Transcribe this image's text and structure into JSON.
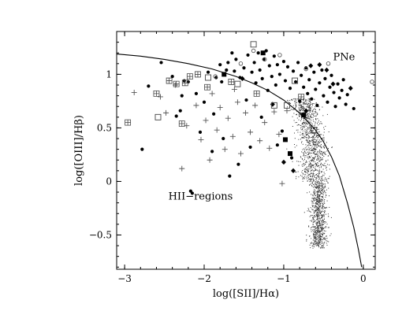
{
  "chart_data": {
    "type": "scatter",
    "title": "",
    "xlabel": "log([SII]/Hα)",
    "ylabel": "log([OIII]/Hβ)",
    "xlim": [
      -3.1,
      0.15
    ],
    "ylim": [
      -0.82,
      1.4
    ],
    "xticks": [
      "−3",
      "−2",
      "−1",
      "0"
    ],
    "xtick_values": [
      -3,
      -2,
      -1,
      0
    ],
    "yticks": [
      "−0.5",
      "0",
      "0.5",
      "1"
    ],
    "ytick_values": [
      -0.5,
      0,
      0.5,
      1
    ],
    "grid": false,
    "annotations": [
      {
        "text": "PNe",
        "x": -0.38,
        "y": 1.13
      },
      {
        "text": "HII−regions",
        "x": -2.45,
        "y": -0.17
      }
    ],
    "demarcation_curve": {
      "x": [
        -3.1,
        -2.8,
        -2.5,
        -2.2,
        -1.9,
        -1.6,
        -1.4,
        -1.2,
        -1.0,
        -0.8,
        -0.6,
        -0.5,
        -0.4,
        -0.3,
        -0.2,
        -0.12,
        -0.06,
        -0.02
      ],
      "y": [
        1.19,
        1.17,
        1.14,
        1.1,
        1.05,
        0.98,
        0.92,
        0.85,
        0.76,
        0.64,
        0.48,
        0.37,
        0.23,
        0.05,
        -0.2,
        -0.43,
        -0.64,
        -0.8
      ]
    },
    "series": [
      {
        "values": [
          [
            -2.78,
            0.3
          ],
          [
            -2.7,
            0.89
          ],
          [
            -2.54,
            1.11
          ],
          [
            -2.4,
            0.98
          ],
          [
            -2.35,
            0.61
          ],
          [
            -2.3,
            0.66
          ],
          [
            -2.28,
            0.8
          ],
          [
            -2.25,
            0.94
          ],
          [
            -2.2,
            0.93
          ],
          [
            -2.17,
            -0.09
          ],
          [
            -2.15,
            -0.11
          ],
          [
            -2.1,
            0.82
          ],
          [
            -2.05,
            0.46
          ],
          [
            -1.95,
            1.02
          ],
          [
            -1.9,
            0.28
          ],
          [
            -1.85,
            0.97
          ],
          [
            -1.8,
            1.09
          ],
          [
            -1.78,
            0.93
          ],
          [
            -1.72,
            1.04
          ],
          [
            -1.7,
            1.11
          ],
          [
            -1.65,
            1.2
          ],
          [
            -1.62,
            1.03
          ],
          [
            -1.6,
            1.14
          ],
          [
            -1.57,
            0.16
          ],
          [
            -1.55,
            0.97
          ],
          [
            -1.5,
            1.06
          ],
          [
            -1.47,
            0.76
          ],
          [
            -1.45,
            1.18
          ],
          [
            -1.42,
            0.32
          ],
          [
            -1.4,
            1.02
          ],
          [
            -1.37,
            1.11
          ],
          [
            -1.35,
            0.92
          ],
          [
            -1.32,
            1.2
          ],
          [
            -1.3,
            1.04
          ],
          [
            -1.27,
            0.96
          ],
          [
            -1.25,
            1.14
          ],
          [
            -1.22,
            1.22
          ],
          [
            -1.2,
            0.85
          ],
          [
            -1.18,
            1.08
          ],
          [
            -1.15,
            0.98
          ],
          [
            -1.12,
            1.17
          ],
          [
            -1.1,
            0.9
          ],
          [
            -1.08,
            1.09
          ],
          [
            -1.05,
            1.0
          ],
          [
            -1.02,
            0.47
          ],
          [
            -1.0,
            1.12
          ],
          [
            -0.98,
            0.94
          ],
          [
            -0.95,
            1.07
          ],
          [
            -0.92,
            0.87
          ],
          [
            -0.9,
            0.22
          ],
          [
            -0.88,
            1.03
          ],
          [
            -0.85,
            0.93
          ],
          [
            -0.82,
            1.11
          ],
          [
            -0.8,
            0.75
          ],
          [
            -0.78,
            0.99
          ],
          [
            -0.75,
            0.88
          ],
          [
            -0.72,
            1.06
          ],
          [
            -0.7,
            0.82
          ],
          [
            -0.68,
            0.95
          ],
          [
            -0.65,
            0.77
          ],
          [
            -0.62,
            1.02
          ],
          [
            -0.6,
            0.86
          ],
          [
            -0.58,
            0.71
          ],
          [
            -0.55,
            0.92
          ],
          [
            -0.52,
            1.04
          ],
          [
            -0.5,
            0.8
          ],
          [
            -0.48,
            0.96
          ],
          [
            -0.45,
            0.74
          ],
          [
            -0.42,
            0.88
          ],
          [
            -0.4,
            0.99
          ],
          [
            -0.37,
            0.83
          ],
          [
            -0.35,
            0.7
          ],
          [
            -0.32,
            0.91
          ],
          [
            -0.3,
            0.78
          ],
          [
            -0.27,
            0.85
          ],
          [
            -0.25,
            0.95
          ],
          [
            -0.22,
            0.72
          ],
          [
            -0.2,
            0.81
          ],
          [
            -0.12,
            0.68
          ],
          [
            -1.88,
            0.63
          ],
          [
            -1.68,
            0.05
          ],
          [
            -2.0,
            0.74
          ],
          [
            -1.28,
            0.6
          ],
          [
            -1.08,
            0.34
          ],
          [
            -1.76,
            0.4
          ]
        ]
      },
      {
        "values": [
          [
            -1.26,
            1.2
          ],
          [
            -0.98,
            0.39
          ],
          [
            -0.92,
            0.26
          ],
          [
            -1.75,
            1.0
          ],
          [
            -0.75,
            0.62
          ]
        ]
      },
      {
        "values": [
          [
            -0.66,
            1.08
          ],
          [
            -0.55,
            1.09
          ],
          [
            -0.38,
            0.91
          ],
          [
            -0.16,
            0.87
          ],
          [
            -0.88,
            0.1
          ],
          [
            -0.72,
            0.66
          ],
          [
            -1.52,
            0.96
          ],
          [
            -1.0,
            0.18
          ],
          [
            -0.46,
            1.04
          ],
          [
            -1.14,
            0.72
          ]
        ]
      },
      {
        "values": [
          [
            -2.88,
            0.83
          ],
          [
            -2.55,
            0.79
          ],
          [
            -2.48,
            0.64
          ],
          [
            -2.36,
            0.9
          ],
          [
            -2.22,
            0.52
          ],
          [
            -2.1,
            0.71
          ],
          [
            -2.04,
            0.39
          ],
          [
            -1.98,
            0.57
          ],
          [
            -1.93,
            0.2
          ],
          [
            -1.84,
            0.48
          ],
          [
            -1.8,
            0.69
          ],
          [
            -1.74,
            0.3
          ],
          [
            -1.7,
            0.59
          ],
          [
            -1.64,
            0.42
          ],
          [
            -1.58,
            0.74
          ],
          [
            -1.54,
            0.26
          ],
          [
            -1.48,
            0.64
          ],
          [
            -1.42,
            0.46
          ],
          [
            -1.36,
            0.71
          ],
          [
            -1.3,
            0.38
          ],
          [
            -1.24,
            0.55
          ],
          [
            -1.18,
            0.31
          ],
          [
            -1.12,
            0.65
          ],
          [
            -1.06,
            0.44
          ],
          [
            -0.96,
            0.66
          ],
          [
            -1.02,
            -0.02
          ],
          [
            -2.28,
            0.12
          ],
          [
            -1.62,
            0.86
          ],
          [
            -1.9,
            0.82
          ]
        ]
      },
      {
        "values": [
          [
            -2.96,
            0.55
          ],
          [
            -2.6,
            0.82
          ],
          [
            -2.44,
            0.94
          ],
          [
            -2.28,
            0.54
          ],
          [
            -2.18,
            0.98
          ],
          [
            -2.08,
            1.0
          ],
          [
            -1.96,
            0.88
          ],
          [
            -1.66,
            0.93
          ],
          [
            -1.34,
            0.82
          ],
          [
            -0.78,
            0.79
          ],
          [
            -2.24,
            0.92
          ],
          [
            -2.35,
            0.91
          ]
        ]
      },
      {
        "values": [
          [
            -2.58,
            0.6
          ],
          [
            -1.95,
            0.97
          ],
          [
            -1.58,
            0.91
          ],
          [
            -1.12,
            0.71
          ],
          [
            -0.96,
            0.71
          ],
          [
            -0.86,
            0.94
          ],
          [
            -1.38,
            1.28
          ],
          [
            -0.62,
            0.48
          ]
        ]
      },
      {
        "values": [
          [
            -1.38,
            1.22
          ],
          [
            -1.05,
            1.18
          ],
          [
            -0.44,
            1.1
          ],
          [
            0.11,
            0.93
          ],
          [
            -1.86,
            0.98
          ],
          [
            -1.24,
            1.14
          ],
          [
            -0.72,
            1.05
          ],
          [
            -1.54,
            1.1
          ]
        ]
      }
    ],
    "density_cloud": {
      "center_x": -0.62,
      "center_y": 0.28,
      "x_range": [
        -1.0,
        -0.38
      ],
      "y_range": [
        -0.62,
        0.78
      ],
      "points_drawn": 1800
    }
  }
}
